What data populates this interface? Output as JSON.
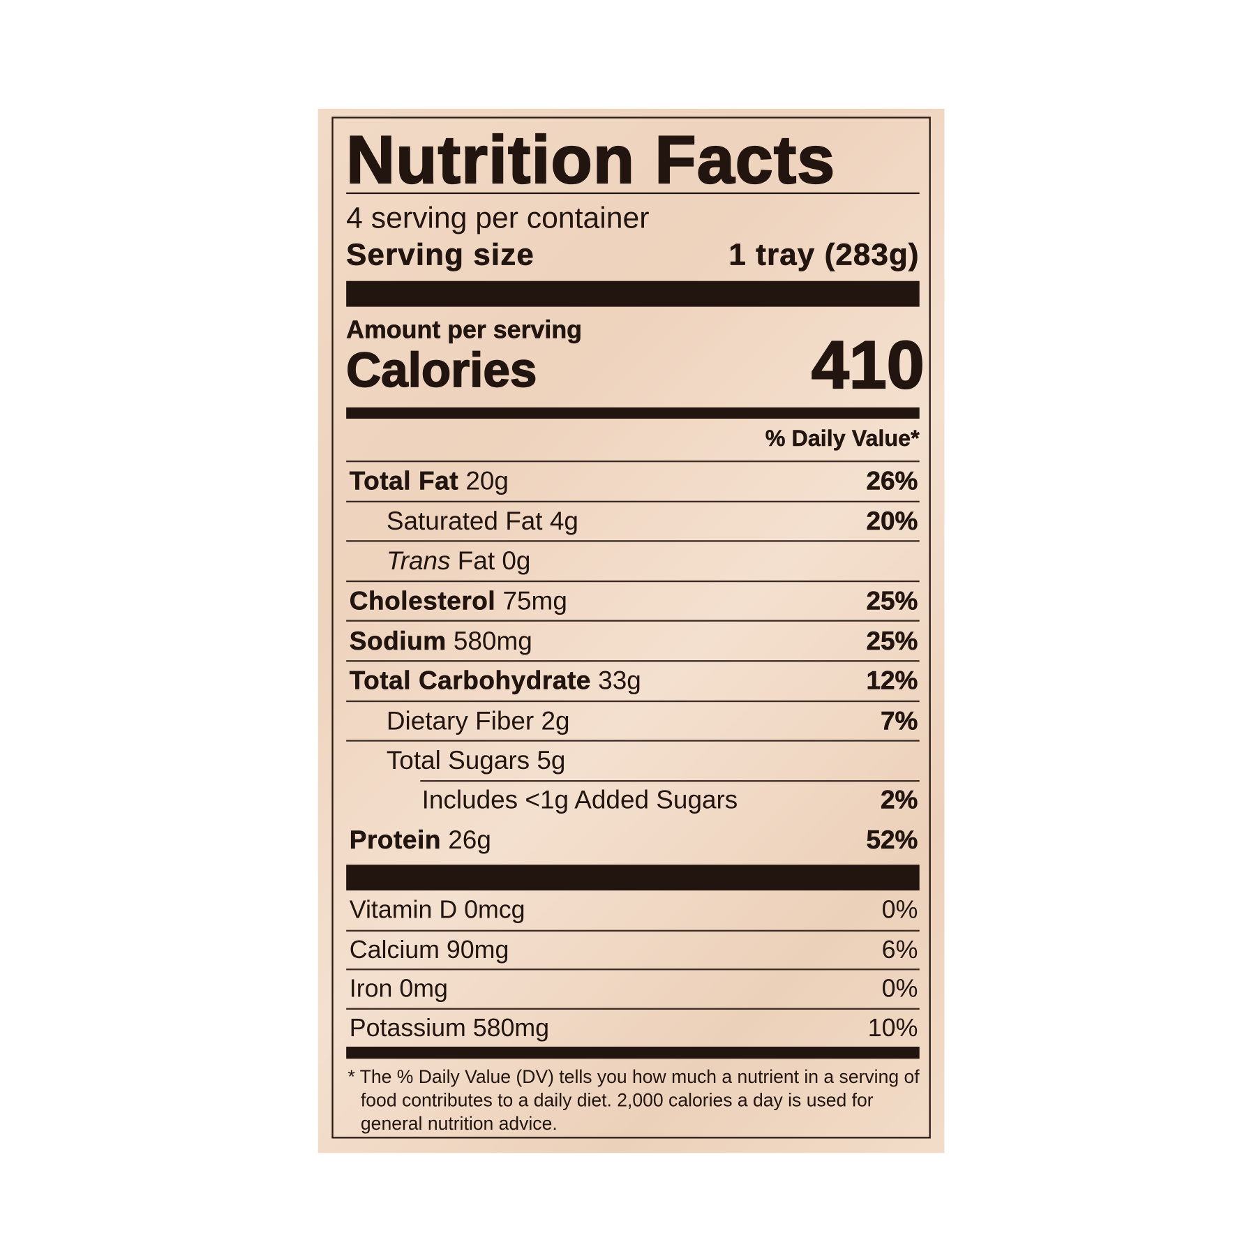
{
  "title": "Nutrition Facts",
  "servings": "4 serving per container",
  "serving_size": {
    "label": "Serving size",
    "value": "1 tray (283g)"
  },
  "amount_per_serving": "Amount per serving",
  "calories": {
    "label": "Calories",
    "value": "410"
  },
  "daily_value_header": "% Daily Value*",
  "nutrients": [
    {
      "name": "Total Fat",
      "amount": "20g",
      "dv": "26%"
    },
    {
      "name": "Saturated Fat",
      "amount": "4g",
      "dv": "20%"
    },
    {
      "name": "Trans",
      "suffix": "Fat",
      "amount": "0g",
      "dv": ""
    },
    {
      "name": "Cholesterol",
      "amount": "75mg",
      "dv": "25%"
    },
    {
      "name": "Sodium",
      "amount": "580mg",
      "dv": "25%"
    },
    {
      "name": "Total Carbohydrate",
      "amount": "33g",
      "dv": "12%"
    },
    {
      "name": "Dietary Fiber",
      "amount": "2g",
      "dv": "7%"
    },
    {
      "name": "Total Sugars",
      "amount": "5g",
      "dv": ""
    },
    {
      "name": "Includes <1g Added Sugars",
      "amount": "",
      "dv": "2%"
    },
    {
      "name": "Protein",
      "amount": "26g",
      "dv": "52%"
    }
  ],
  "vitamins": [
    {
      "label": "Vitamin D 0mcg",
      "dv": "0%"
    },
    {
      "label": "Calcium 90mg",
      "dv": "6%"
    },
    {
      "label": "Iron 0mg",
      "dv": "0%"
    },
    {
      "label": "Potassium 580mg",
      "dv": "10%"
    }
  ],
  "footnote": "* The % Daily Value (DV) tells you how much a nutrient in a serving of food contributes to a daily diet. 2,000 calories a day is used for general nutrition advice.",
  "colors": {
    "ink": "#22140f",
    "background": "#f1dac6"
  }
}
